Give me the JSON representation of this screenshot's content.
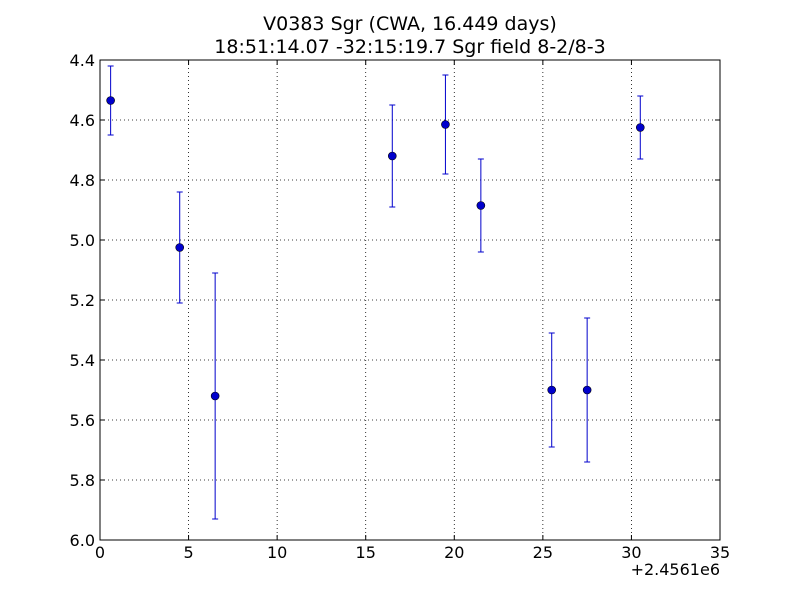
{
  "chart_data": {
    "type": "scatter",
    "title": "V0383 Sgr  (CWA, 16.449 days)",
    "subtitle": "18:51:14.07 -32:15:19.7 Sgr field 8-2/8-3",
    "xlabel": "",
    "ylabel": "",
    "x_offset_label": "+2.4561e6",
    "xlim": [
      0,
      35
    ],
    "ylim": [
      6.0,
      4.4
    ],
    "y_inverted": true,
    "grid": true,
    "x_ticks": [
      0,
      5,
      10,
      15,
      20,
      25,
      30,
      35
    ],
    "x_tick_labels": [
      "0",
      "5",
      "10",
      "15",
      "20",
      "25",
      "30",
      "35"
    ],
    "y_ticks": [
      4.4,
      4.6,
      4.8,
      5.0,
      5.2,
      5.4,
      5.6,
      5.8,
      6.0
    ],
    "y_tick_labels": [
      "4.4",
      "4.6",
      "4.8",
      "5.0",
      "5.2",
      "5.4",
      "5.6",
      "5.8",
      "6.0"
    ],
    "color": "#0000cc",
    "points": [
      {
        "x": 0.6,
        "y": 4.535,
        "err": 0.115
      },
      {
        "x": 4.5,
        "y": 5.025,
        "err": 0.185
      },
      {
        "x": 6.5,
        "y": 5.52,
        "err": 0.41
      },
      {
        "x": 16.5,
        "y": 4.72,
        "err": 0.17
      },
      {
        "x": 19.5,
        "y": 4.615,
        "err": 0.165
      },
      {
        "x": 21.5,
        "y": 4.885,
        "err": 0.155
      },
      {
        "x": 25.5,
        "y": 5.5,
        "err": 0.19
      },
      {
        "x": 27.5,
        "y": 5.5,
        "err": 0.24
      },
      {
        "x": 30.5,
        "y": 4.625,
        "err": 0.105
      }
    ]
  }
}
